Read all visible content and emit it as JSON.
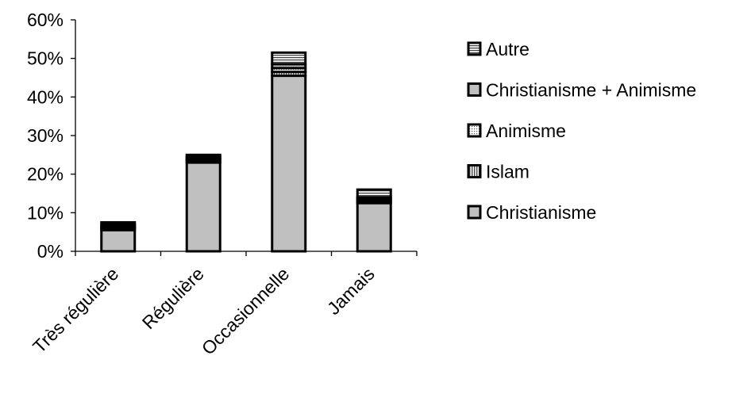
{
  "chart_data": {
    "type": "bar",
    "stacked": true,
    "categories": [
      "Très régulière",
      "Régulière",
      "Occasionnelle",
      "Jamais"
    ],
    "series": [
      {
        "name": "Christianisme",
        "values": [
          5.5,
          23,
          45.5,
          12.5
        ],
        "color": "#c0c0c0",
        "pattern": "solid"
      },
      {
        "name": "Islam",
        "values": [
          0.5,
          0.5,
          1,
          0.5
        ],
        "color": "#c0c0c0",
        "pattern": "vertical-lines"
      },
      {
        "name": "Animisme",
        "values": [
          0.5,
          0.5,
          1,
          0.5
        ],
        "color": "#ffffff",
        "pattern": "dots"
      },
      {
        "name": "Christianisme + Animisme",
        "values": [
          0.5,
          0.5,
          1,
          0.5
        ],
        "color": "#c0c0c0",
        "pattern": "solid"
      },
      {
        "name": "Autre",
        "values": [
          0.5,
          0.5,
          3,
          2
        ],
        "color": "#ffffff",
        "pattern": "horizontal-lines"
      }
    ],
    "yticks": [
      "0%",
      "10%",
      "20%",
      "30%",
      "40%",
      "50%",
      "60%"
    ],
    "ylim": [
      0,
      60
    ],
    "legend_position": "right",
    "legend_order": [
      "Autre",
      "Christianisme + Animisme",
      "Animisme",
      "Islam",
      "Christianisme"
    ],
    "grid": false
  }
}
